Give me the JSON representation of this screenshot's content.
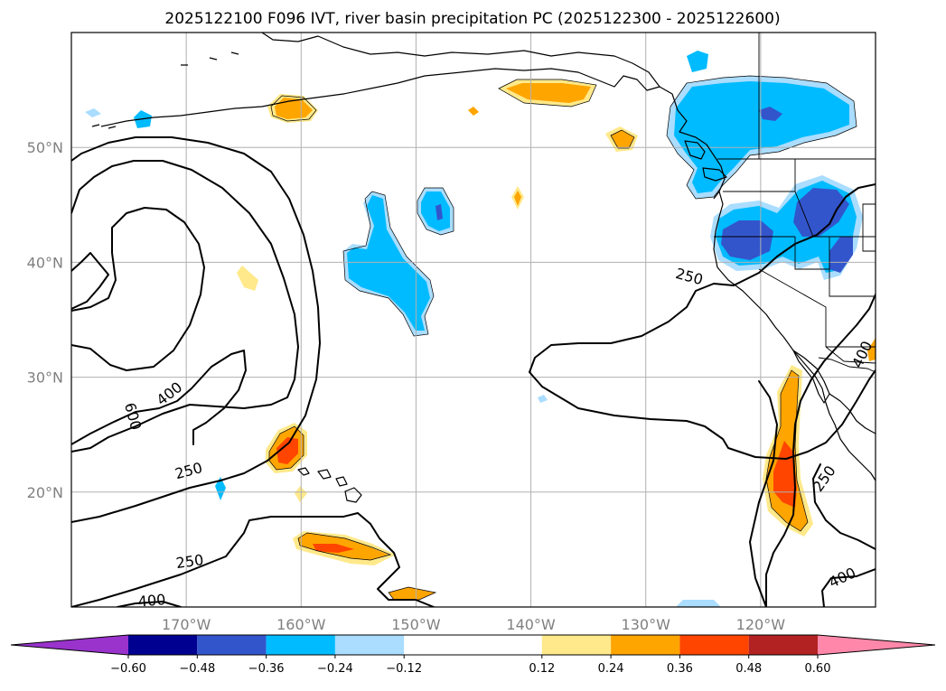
{
  "chart_data": {
    "type": "contour_map",
    "title": "2025122100 F096 IVT, river basin precipitation PC (2025122300 - 2025122600)",
    "xlabel": "",
    "ylabel": "",
    "lon_range": [
      -180,
      -110
    ],
    "lat_range": [
      10,
      60
    ],
    "lon_ticks": [
      -170,
      -160,
      -150,
      -140,
      -130,
      -120
    ],
    "lon_tick_labels": [
      "170°W",
      "160°W",
      "150°W",
      "140°W",
      "130°W",
      "120°W"
    ],
    "lat_ticks": [
      20,
      30,
      40,
      50
    ],
    "lat_tick_labels": [
      "20°N",
      "30°N",
      "40°N",
      "50°N"
    ],
    "grid": true,
    "ivt_contour_levels": [
      250,
      400,
      600
    ],
    "ivt_contour_labels": [
      {
        "text": "600",
        "lon": -174.6,
        "lat": 26.6,
        "rotate": 75
      },
      {
        "text": "400",
        "lon": -171.5,
        "lat": 28.6,
        "rotate": -38
      },
      {
        "text": "250",
        "lon": -169.8,
        "lat": 21.9,
        "rotate": -15
      },
      {
        "text": "250",
        "lon": -169.7,
        "lat": 14.0,
        "rotate": -8
      },
      {
        "text": "400",
        "lon": -173,
        "lat": 10.6,
        "rotate": -5
      },
      {
        "text": "250",
        "lon": -126.2,
        "lat": 38.8,
        "rotate": 15
      },
      {
        "text": "400",
        "lon": -111.2,
        "lat": 32.0,
        "rotate": -65
      },
      {
        "text": "250",
        "lon": -114.5,
        "lat": 21.2,
        "rotate": -55
      },
      {
        "text": "400",
        "lon": -112.9,
        "lat": 12.6,
        "rotate": -25
      }
    ],
    "colorbar": {
      "tick_values": [
        -0.6,
        -0.48,
        -0.36,
        -0.24,
        -0.12,
        0.12,
        0.24,
        0.36,
        0.48,
        0.6
      ],
      "tick_labels": [
        "−0.60",
        "−0.48",
        "−0.36",
        "−0.24",
        "−0.12",
        "0.12",
        "0.24",
        "0.36",
        "0.48",
        "0.60"
      ],
      "bins": [
        {
          "from": null,
          "to": -0.6,
          "color": "#9933cc"
        },
        {
          "from": -0.6,
          "to": -0.48,
          "color": "#000090"
        },
        {
          "from": -0.48,
          "to": -0.36,
          "color": "#3355cc"
        },
        {
          "from": -0.36,
          "to": -0.24,
          "color": "#00bbff"
        },
        {
          "from": -0.24,
          "to": -0.12,
          "color": "#aaddff"
        },
        {
          "from": -0.12,
          "to": 0.12,
          "color": "#ffffff"
        },
        {
          "from": 0.12,
          "to": 0.24,
          "color": "#ffe98a"
        },
        {
          "from": 0.24,
          "to": 0.36,
          "color": "#ffa500"
        },
        {
          "from": 0.36,
          "to": 0.48,
          "color": "#ff4500"
        },
        {
          "from": 0.48,
          "to": 0.6,
          "color": "#b22222"
        },
        {
          "from": 0.6,
          "to": null,
          "color": "#ff88aa"
        }
      ]
    },
    "shading_regions": [
      {
        "name": "alaska-gulf-anomaly",
        "value": -0.4
      },
      {
        "name": "pacific-northwest-anomaly",
        "value": -0.45
      },
      {
        "name": "central-pacific-negative-anomaly",
        "value": -0.3
      },
      {
        "name": "hawaii-positive-anomaly",
        "value": 0.4
      },
      {
        "name": "baja-mexico-positive-anomaly",
        "value": 0.42
      },
      {
        "name": "aleutian-positive-anomaly",
        "value": 0.3
      }
    ]
  }
}
